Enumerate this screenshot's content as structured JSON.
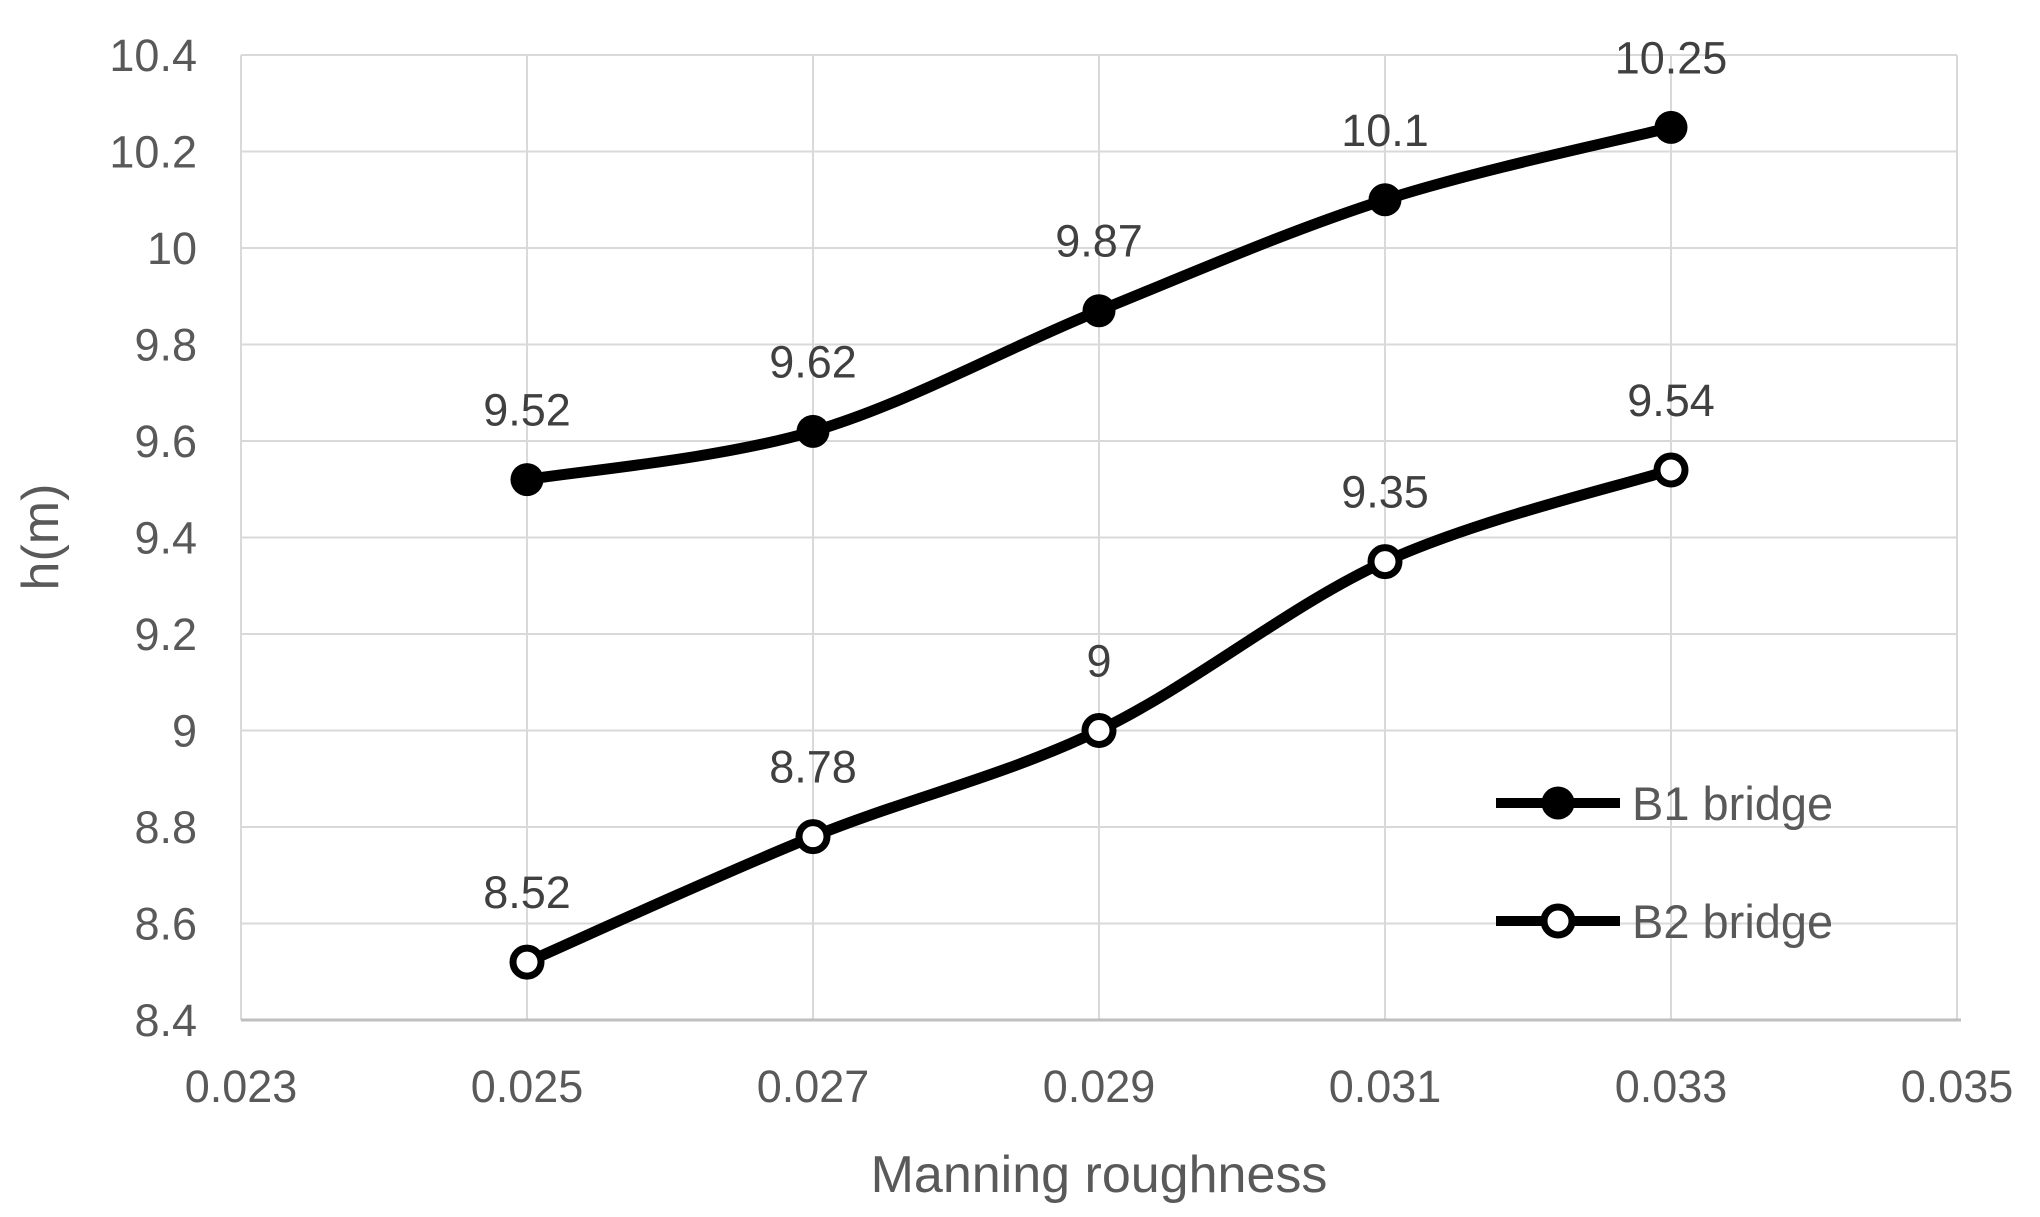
{
  "chart_data": {
    "type": "line",
    "smooth": true,
    "grid": true,
    "x": [
      0.025,
      0.027,
      0.029,
      0.031,
      0.033
    ],
    "series": [
      {
        "name": "B1 bridge",
        "values": [
          9.52,
          9.62,
          9.87,
          10.1,
          10.25
        ],
        "point_labels": [
          "9.52",
          "9.62",
          "9.87",
          "10.1",
          "10.25"
        ],
        "marker": "filled-circle"
      },
      {
        "name": "B2 bridge",
        "values": [
          8.52,
          8.78,
          9.0,
          9.35,
          9.54
        ],
        "point_labels": [
          "8.52",
          "8.78",
          "9",
          "9.35",
          "9.54"
        ],
        "marker": "open-circle"
      }
    ],
    "title": "",
    "xlabel": "Manning roughness",
    "ylabel": "h(m)",
    "xlim": [
      0.023,
      0.035
    ],
    "ylim": [
      8.4,
      10.4
    ],
    "xticks": [
      "0.023",
      "0.025",
      "0.027",
      "0.029",
      "0.031",
      "0.033",
      "0.035"
    ],
    "yticks": [
      "8.4",
      "8.6",
      "8.8",
      "9",
      "9.2",
      "9.4",
      "9.6",
      "9.8",
      "10",
      "10.2",
      "10.4"
    ],
    "legend_position": "inside-right"
  },
  "colors": {
    "series_line": "#000000",
    "marker_fill": "#000000",
    "open_marker_fill": "#ffffff",
    "gridline": "#d9d9d9",
    "axis_line": "#bfbfbf",
    "tick_label": "#595959",
    "data_label": "#404040",
    "axis_title": "#595959",
    "legend_text": "#595959",
    "background": "#ffffff"
  }
}
